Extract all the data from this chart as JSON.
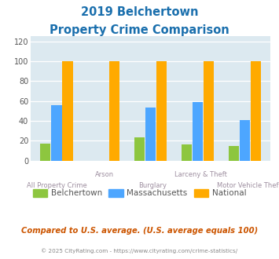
{
  "title_line1": "2019 Belchertown",
  "title_line2": "Property Crime Comparison",
  "categories": [
    "All Property Crime",
    "Arson",
    "Burglary",
    "Larceny & Theft",
    "Motor Vehicle Theft"
  ],
  "belchertown": [
    17,
    0,
    23,
    16,
    15
  ],
  "massachusetts": [
    56,
    0,
    53,
    59,
    41
  ],
  "national": [
    100,
    100,
    100,
    100,
    100
  ],
  "colors": {
    "belchertown": "#8dc63f",
    "massachusetts": "#4da6ff",
    "national": "#ffaa00"
  },
  "ylabel_vals": [
    0,
    20,
    40,
    60,
    80,
    100,
    120
  ],
  "ylim": [
    0,
    125
  ],
  "bg_color": "#dce9f0",
  "title_color": "#1a6fad",
  "xlabel_color": "#9e8fa0",
  "legend_label_color": "#555555",
  "footer_text": "Compared to U.S. average. (U.S. average equals 100)",
  "footer_color": "#cc5500",
  "copyright_text": "© 2025 CityRating.com - https://www.cityrating.com/crime-statistics/",
  "copyright_color": "#888888",
  "bar_width": 0.22,
  "bar_gap": 0.015
}
